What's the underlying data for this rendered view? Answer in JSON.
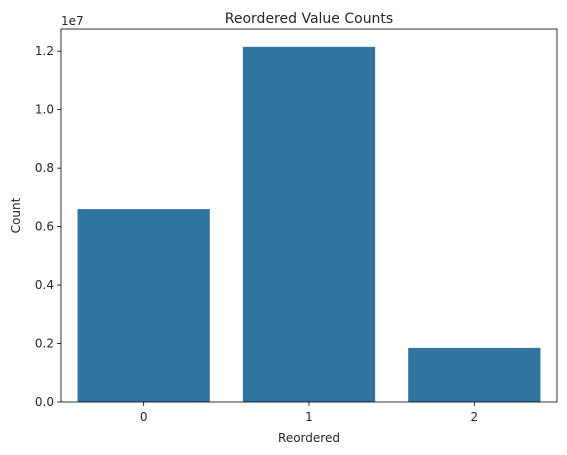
{
  "chart_data": {
    "type": "bar",
    "title": "Reordered Value Counts",
    "xlabel": "Reordered",
    "ylabel": "Count",
    "categories": [
      "0",
      "1",
      "2"
    ],
    "values": [
      6600000,
      12150000,
      1850000
    ],
    "ylim": [
      0,
      12760000
    ],
    "y_offset_label": "1e7",
    "y_ticks": [
      0,
      2000000,
      4000000,
      6000000,
      8000000,
      10000000,
      12000000
    ],
    "y_tick_labels": [
      "0.0",
      "0.2",
      "0.4",
      "0.6",
      "0.8",
      "1.0",
      "1.2"
    ],
    "bar_color": "#3274a1",
    "grid": false,
    "legend": "none"
  }
}
